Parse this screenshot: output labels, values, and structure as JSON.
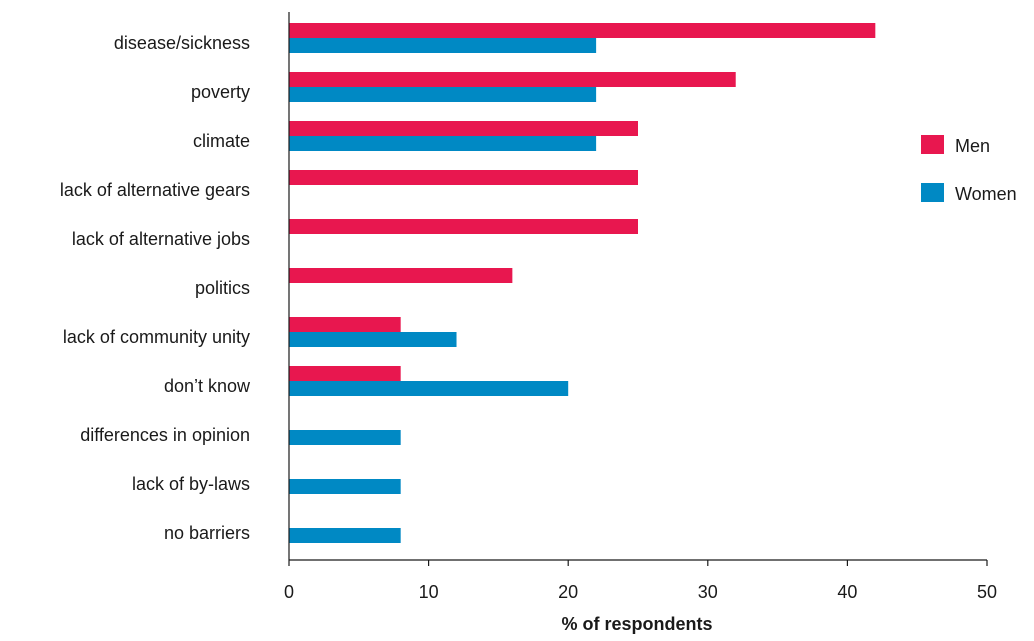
{
  "chart_data": {
    "type": "bar",
    "orientation": "horizontal",
    "categories": [
      "disease/sickness",
      "poverty",
      "climate",
      "lack of alternative gears",
      "lack of alternative jobs",
      "politics",
      "lack of community unity",
      "don’t know",
      "differences in opinion",
      "lack of by-laws",
      "no barriers"
    ],
    "series": [
      {
        "name": "Men",
        "color": "#e8174f",
        "values": [
          42,
          32,
          25,
          25,
          25,
          16,
          8,
          8,
          0,
          0,
          0
        ]
      },
      {
        "name": "Women",
        "color": "#0089c4",
        "values": [
          22,
          22,
          22,
          0,
          0,
          0,
          12,
          20,
          8,
          8,
          8
        ]
      }
    ],
    "xlabel": "% of respondents",
    "ylabel": "",
    "xlim": [
      0,
      50
    ],
    "xticks": [
      0,
      10,
      20,
      30,
      40,
      50
    ],
    "grid": false,
    "legend_position": "right"
  }
}
